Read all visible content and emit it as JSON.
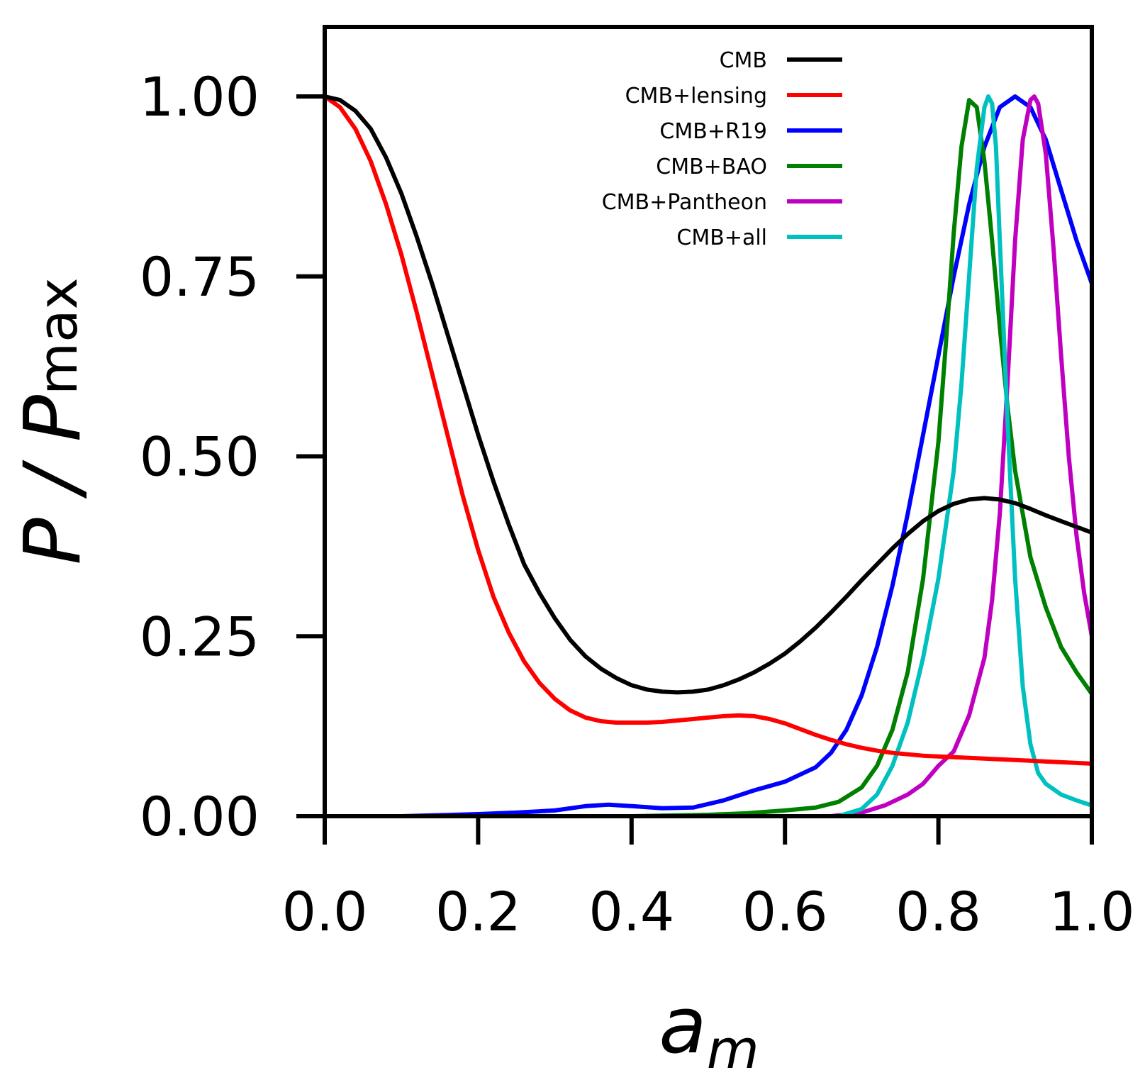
{
  "chart_data": {
    "type": "line",
    "title": "",
    "xlabel": {
      "main": "a",
      "sub": "m"
    },
    "ylabel": {
      "main": "P / P",
      "sub": "max"
    },
    "xlim": [
      0.0,
      1.0
    ],
    "ylim": [
      0.0,
      1.1
    ],
    "xticks": [
      0.0,
      0.2,
      0.4,
      0.6,
      0.8,
      1.0
    ],
    "xtick_labels": [
      "0.0",
      "0.2",
      "0.4",
      "0.6",
      "0.8",
      "1.0"
    ],
    "yticks": [
      0.0,
      0.25,
      0.5,
      0.75,
      1.0
    ],
    "ytick_labels": [
      "0.00",
      "0.25",
      "0.50",
      "0.75",
      "1.00"
    ],
    "grid": false,
    "legend_position": "top-right",
    "series": [
      {
        "name": "CMB",
        "color": "#000000",
        "x": [
          0.0,
          0.02,
          0.04,
          0.06,
          0.08,
          0.1,
          0.12,
          0.14,
          0.16,
          0.18,
          0.2,
          0.22,
          0.24,
          0.26,
          0.28,
          0.3,
          0.32,
          0.34,
          0.36,
          0.38,
          0.4,
          0.42,
          0.44,
          0.46,
          0.48,
          0.5,
          0.52,
          0.54,
          0.56,
          0.58,
          0.6,
          0.62,
          0.64,
          0.66,
          0.68,
          0.7,
          0.72,
          0.74,
          0.76,
          0.78,
          0.8,
          0.82,
          0.84,
          0.86,
          0.88,
          0.9,
          0.92,
          0.94,
          0.96,
          0.98,
          1.0
        ],
        "y": [
          1.0,
          0.995,
          0.98,
          0.955,
          0.915,
          0.865,
          0.805,
          0.74,
          0.67,
          0.6,
          0.53,
          0.465,
          0.405,
          0.35,
          0.31,
          0.275,
          0.245,
          0.222,
          0.205,
          0.192,
          0.182,
          0.176,
          0.173,
          0.172,
          0.173,
          0.176,
          0.182,
          0.19,
          0.2,
          0.212,
          0.226,
          0.243,
          0.262,
          0.283,
          0.305,
          0.328,
          0.35,
          0.372,
          0.392,
          0.41,
          0.424,
          0.434,
          0.44,
          0.442,
          0.44,
          0.435,
          0.427,
          0.418,
          0.41,
          0.402,
          0.394
        ]
      },
      {
        "name": "CMB+lensing",
        "color": "#ff0000",
        "x": [
          0.0,
          0.02,
          0.04,
          0.06,
          0.08,
          0.1,
          0.12,
          0.14,
          0.16,
          0.18,
          0.2,
          0.22,
          0.24,
          0.26,
          0.28,
          0.3,
          0.32,
          0.34,
          0.36,
          0.38,
          0.4,
          0.42,
          0.44,
          0.46,
          0.48,
          0.5,
          0.52,
          0.54,
          0.56,
          0.58,
          0.6,
          0.62,
          0.64,
          0.66,
          0.68,
          0.7,
          0.72,
          0.74,
          0.76,
          0.78,
          0.8,
          0.82,
          0.84,
          0.86,
          0.88,
          0.9,
          0.92,
          0.94,
          0.96,
          0.98,
          1.0
        ],
        "y": [
          1.0,
          0.985,
          0.955,
          0.91,
          0.85,
          0.78,
          0.7,
          0.615,
          0.53,
          0.445,
          0.37,
          0.305,
          0.255,
          0.215,
          0.185,
          0.163,
          0.147,
          0.137,
          0.132,
          0.13,
          0.13,
          0.13,
          0.131,
          0.133,
          0.135,
          0.137,
          0.139,
          0.14,
          0.139,
          0.135,
          0.129,
          0.121,
          0.113,
          0.106,
          0.1,
          0.095,
          0.091,
          0.088,
          0.086,
          0.084,
          0.083,
          0.082,
          0.081,
          0.08,
          0.079,
          0.078,
          0.077,
          0.076,
          0.075,
          0.074,
          0.073
        ]
      },
      {
        "name": "CMB+R19",
        "color": "#0000ff",
        "x": [
          0.0,
          0.1,
          0.2,
          0.25,
          0.3,
          0.34,
          0.37,
          0.4,
          0.44,
          0.48,
          0.52,
          0.56,
          0.6,
          0.64,
          0.66,
          0.68,
          0.7,
          0.72,
          0.74,
          0.76,
          0.78,
          0.8,
          0.82,
          0.84,
          0.86,
          0.88,
          0.9,
          0.92,
          0.94,
          0.96,
          0.98,
          1.0
        ],
        "y": [
          0.0,
          0.0,
          0.003,
          0.005,
          0.008,
          0.014,
          0.016,
          0.014,
          0.011,
          0.012,
          0.022,
          0.036,
          0.048,
          0.068,
          0.088,
          0.12,
          0.168,
          0.235,
          0.32,
          0.42,
          0.53,
          0.64,
          0.75,
          0.85,
          0.93,
          0.985,
          1.0,
          0.985,
          0.94,
          0.87,
          0.8,
          0.74
        ]
      },
      {
        "name": "CMB+BAO",
        "color": "#008000",
        "x": [
          0.0,
          0.4,
          0.5,
          0.55,
          0.6,
          0.64,
          0.67,
          0.7,
          0.72,
          0.74,
          0.76,
          0.78,
          0.8,
          0.81,
          0.82,
          0.83,
          0.84,
          0.85,
          0.86,
          0.87,
          0.88,
          0.89,
          0.9,
          0.92,
          0.94,
          0.96,
          0.98,
          1.0
        ],
        "y": [
          0.0,
          0.0,
          0.002,
          0.004,
          0.008,
          0.012,
          0.02,
          0.04,
          0.07,
          0.12,
          0.2,
          0.33,
          0.52,
          0.66,
          0.81,
          0.93,
          0.995,
          0.985,
          0.91,
          0.8,
          0.68,
          0.57,
          0.48,
          0.36,
          0.29,
          0.235,
          0.2,
          0.17
        ]
      },
      {
        "name": "CMB+Pantheon",
        "color": "#c000c0",
        "x": [
          0.0,
          0.66,
          0.7,
          0.73,
          0.76,
          0.78,
          0.8,
          0.82,
          0.84,
          0.86,
          0.87,
          0.88,
          0.89,
          0.9,
          0.91,
          0.92,
          0.925,
          0.93,
          0.94,
          0.95,
          0.96,
          0.97,
          0.98,
          0.99,
          1.0
        ],
        "y": [
          0.0,
          0.0,
          0.005,
          0.015,
          0.03,
          0.045,
          0.07,
          0.09,
          0.14,
          0.22,
          0.3,
          0.42,
          0.6,
          0.8,
          0.94,
          0.995,
          1.0,
          0.99,
          0.92,
          0.79,
          0.64,
          0.5,
          0.39,
          0.31,
          0.25
        ]
      },
      {
        "name": "CMB+all",
        "color": "#00c0c0",
        "x": [
          0.0,
          0.67,
          0.7,
          0.72,
          0.74,
          0.76,
          0.78,
          0.8,
          0.82,
          0.83,
          0.84,
          0.85,
          0.86,
          0.865,
          0.87,
          0.875,
          0.88,
          0.89,
          0.9,
          0.91,
          0.92,
          0.93,
          0.94,
          0.96,
          0.98,
          1.0
        ],
        "y": [
          0.0,
          0.0,
          0.01,
          0.03,
          0.07,
          0.13,
          0.22,
          0.33,
          0.48,
          0.6,
          0.75,
          0.9,
          0.985,
          1.0,
          0.99,
          0.93,
          0.8,
          0.55,
          0.33,
          0.18,
          0.1,
          0.06,
          0.045,
          0.03,
          0.022,
          0.015
        ]
      }
    ]
  }
}
